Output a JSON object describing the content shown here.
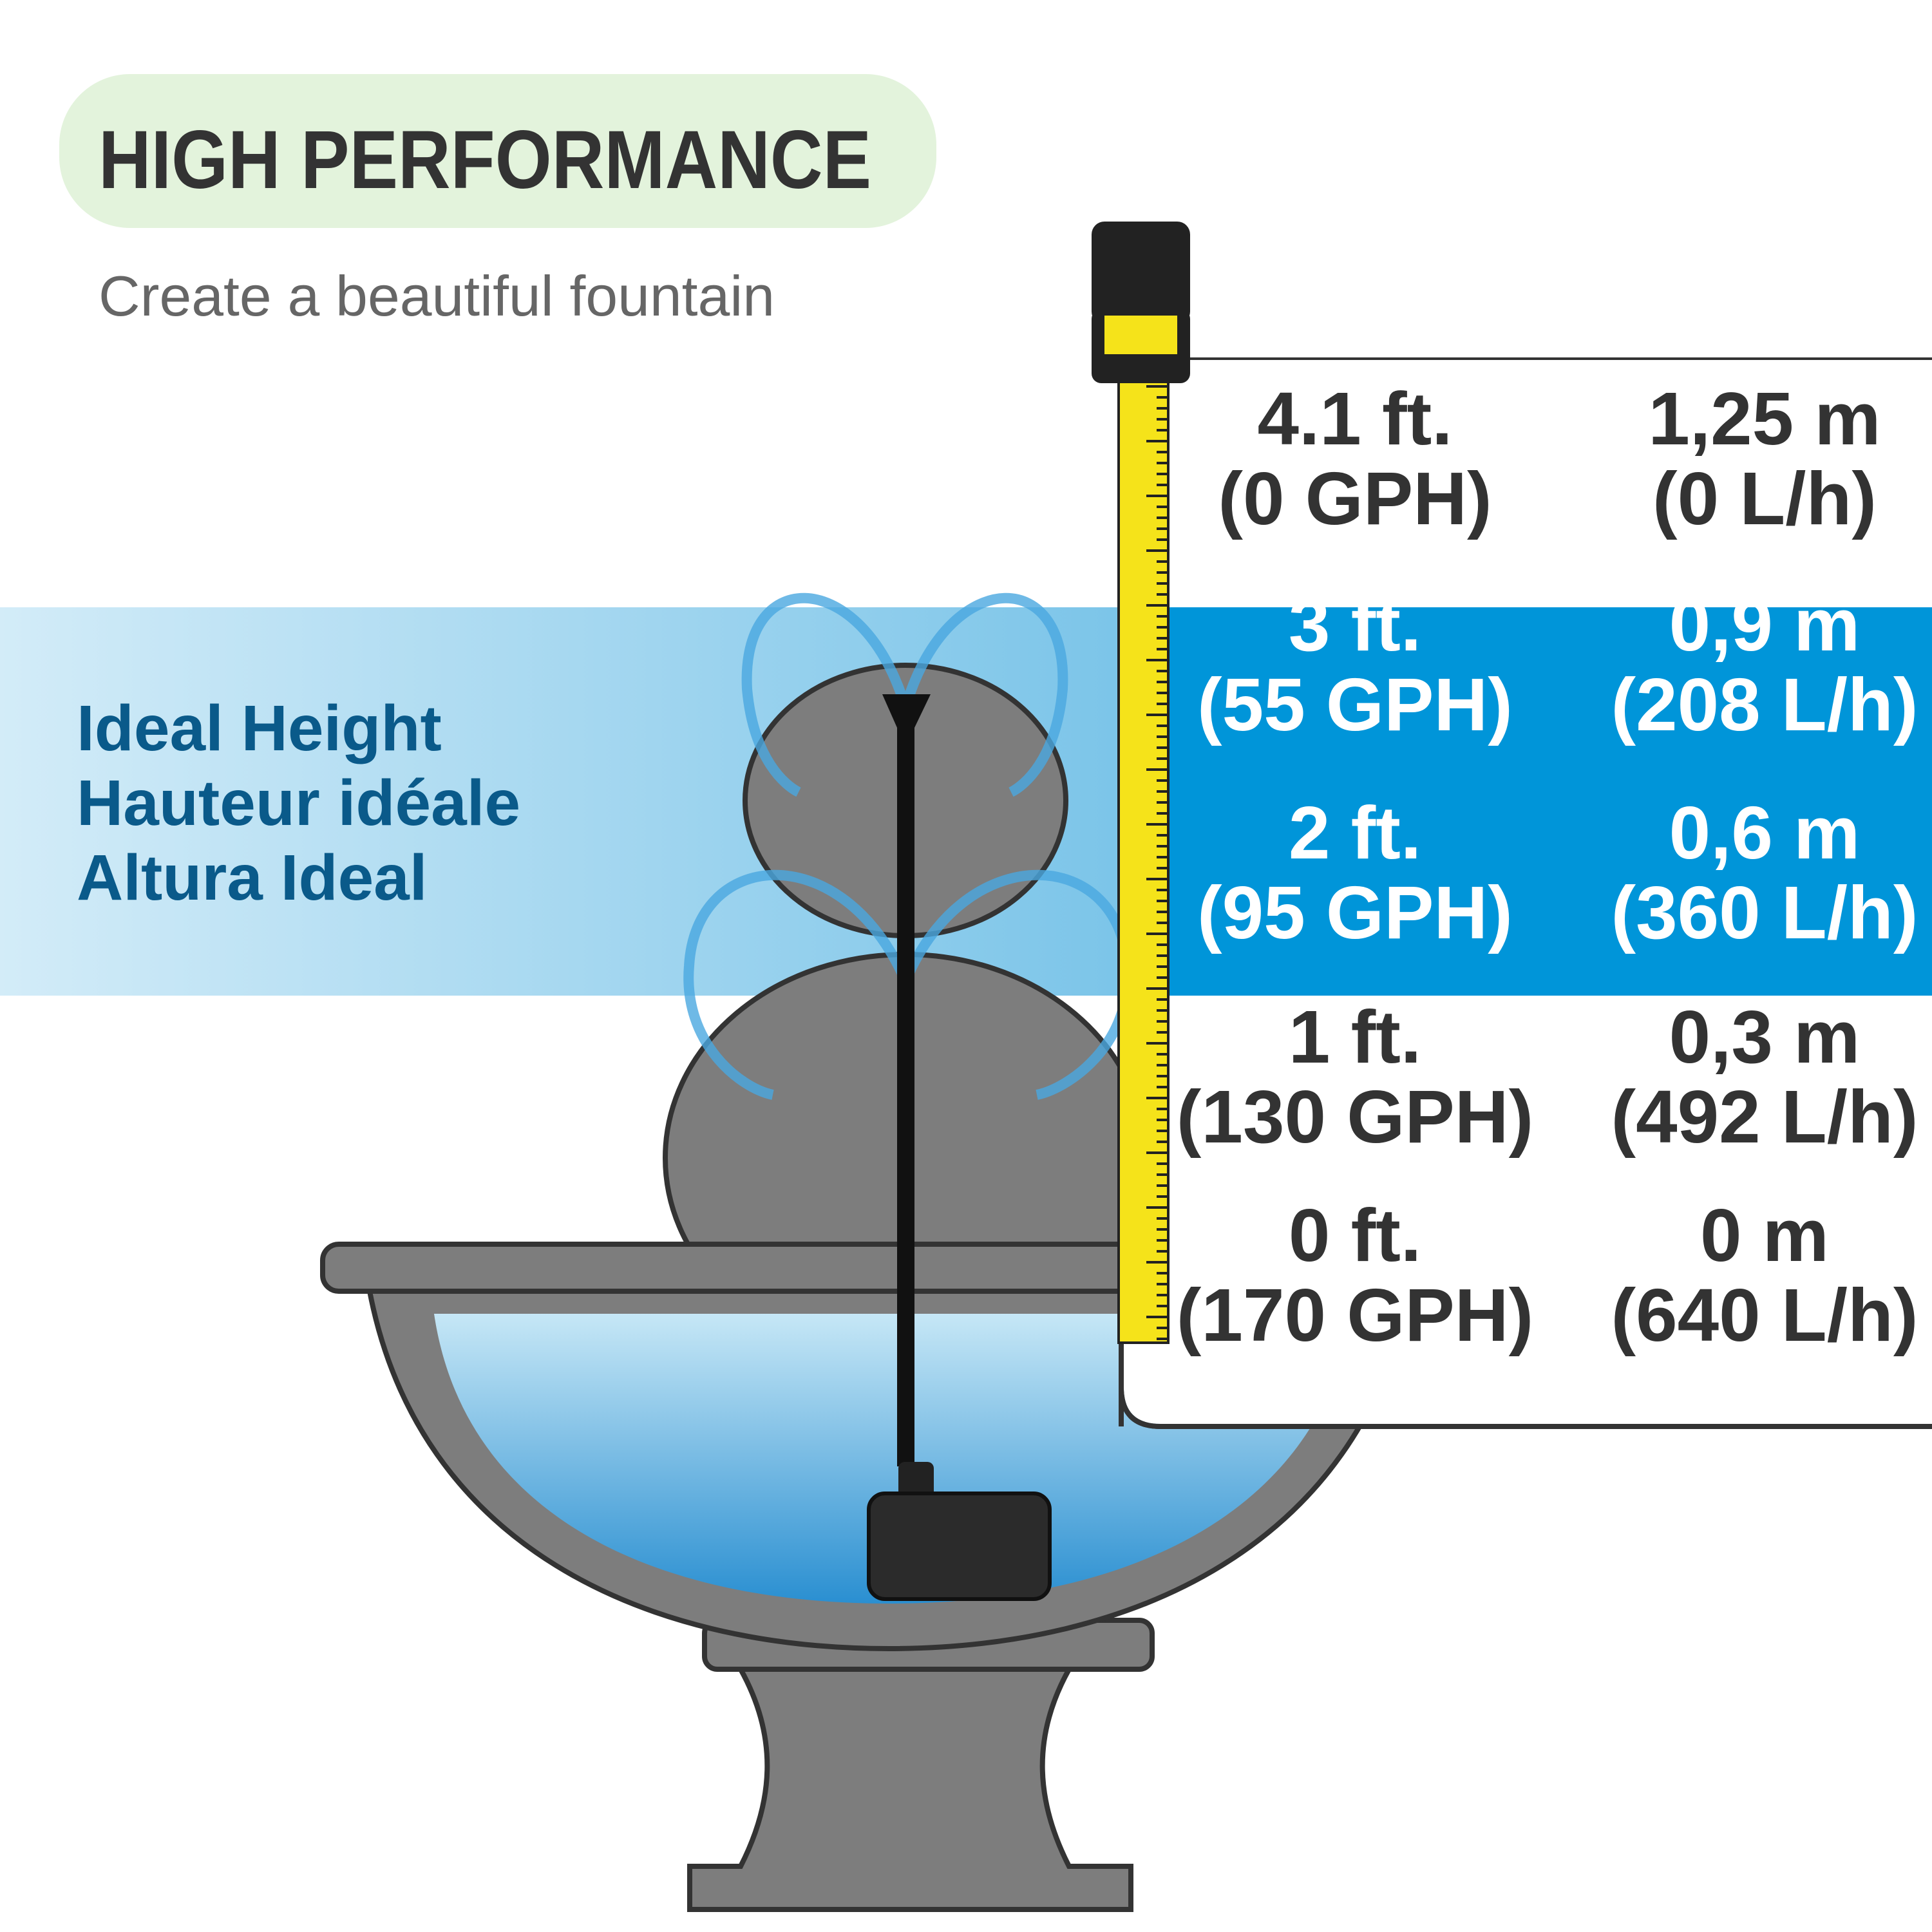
{
  "header": {
    "title": "HIGH PERFORMANCE",
    "subtitle": "Create a beautiful fountain"
  },
  "ideal_height": {
    "labels": [
      "Ideal Height",
      "Hauteur idéale",
      "Altura Ideal"
    ]
  },
  "table": {
    "rows": [
      {
        "imperial": [
          "4.1 ft.",
          "(0 GPH)"
        ],
        "metric": [
          "1,25 m",
          "(0 L/h)"
        ]
      },
      {
        "imperial": [
          "3 ft.",
          "(55 GPH)"
        ],
        "metric": [
          "0,9 m",
          "(208 L/h)"
        ]
      },
      {
        "imperial": [
          "2 ft.",
          "(95 GPH)"
        ],
        "metric": [
          "0,6 m",
          "(360 L/h)"
        ]
      },
      {
        "imperial": [
          "1 ft.",
          "(130 GPH)"
        ],
        "metric": [
          "0,3 m",
          "(492 L/h)"
        ]
      },
      {
        "imperial": [
          "0 ft.",
          "(170 GPH)"
        ],
        "metric": [
          "0 m",
          "(640 L/h)"
        ]
      }
    ]
  }
}
